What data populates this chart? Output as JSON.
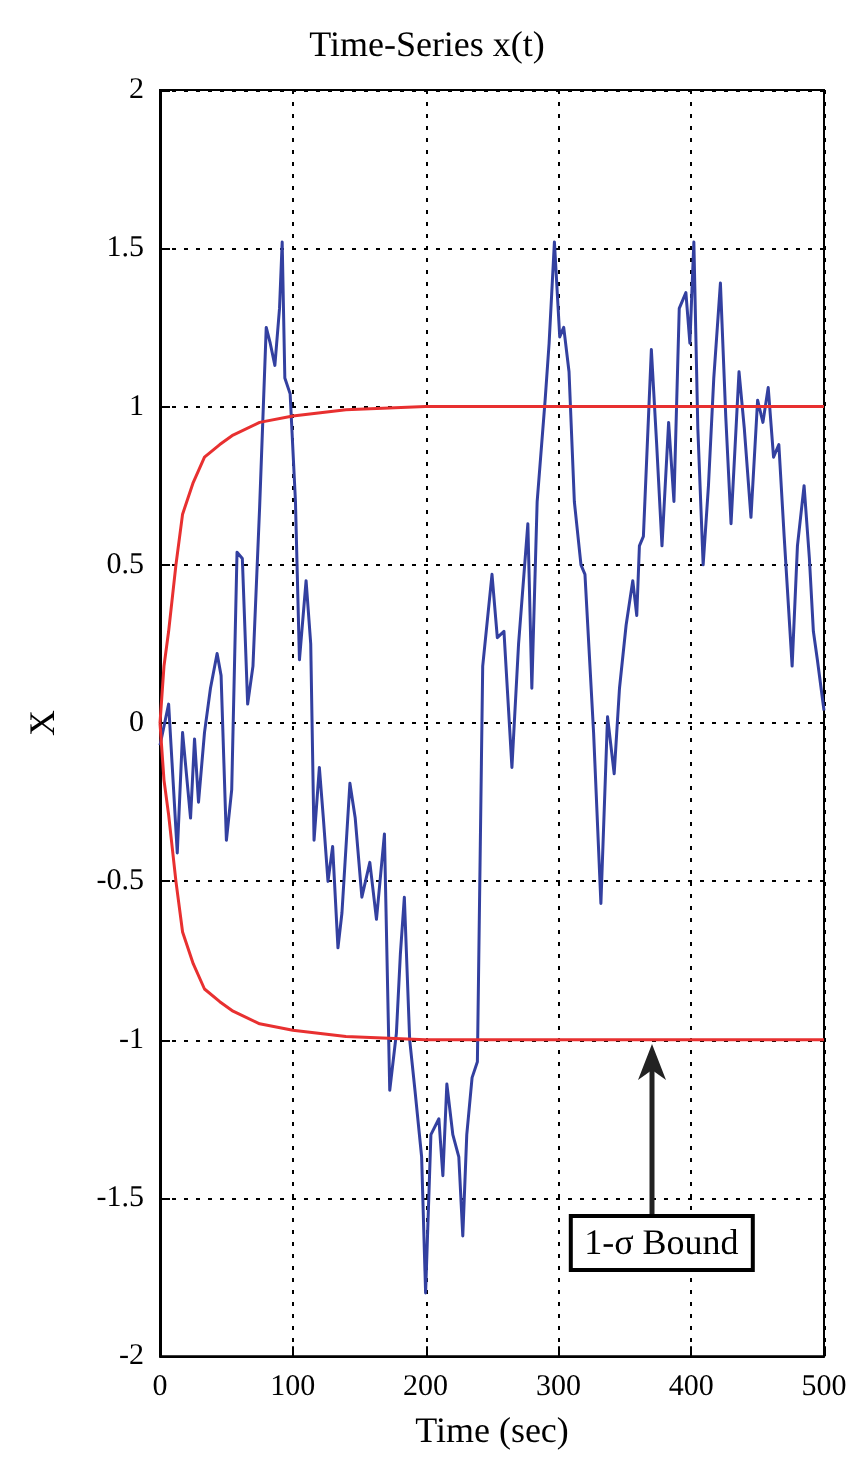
{
  "chart_data": {
    "type": "line",
    "title": "Time-Series x(t)",
    "xlabel": "Time (sec)",
    "ylabel": "X",
    "xlim": [
      0,
      500
    ],
    "xticks": [
      0,
      100,
      200,
      300,
      400,
      500
    ],
    "ylim": [
      -2,
      2
    ],
    "yticks": [
      -2,
      -1.5,
      -1,
      -0.5,
      0,
      0.5,
      1,
      1.5,
      2
    ],
    "grid": true,
    "marker": "none",
    "line_style": "solid",
    "annotations": [
      "1-σ Bound"
    ],
    "series": [
      {
        "color": "#3340a0",
        "x": [
          0,
          6.5,
          13,
          17,
          23,
          26,
          29,
          33.5,
          38,
          43,
          46,
          50,
          54,
          58,
          62,
          66,
          70,
          75,
          80,
          83,
          86.5,
          90,
          92,
          94,
          98,
          102,
          105,
          110,
          113.5,
          116,
          120,
          123,
          126.5,
          130,
          134,
          137,
          143,
          147,
          152,
          158,
          163,
          169,
          173,
          178,
          181,
          184,
          188,
          192,
          197,
          200,
          204,
          210,
          213,
          216,
          220.5,
          225,
          228,
          231,
          235,
          239,
          243,
          250,
          254,
          259,
          265,
          270,
          277,
          280,
          284,
          290,
          293,
          297,
          301,
          304,
          308,
          312,
          317,
          320,
          326.5,
          332,
          337,
          342,
          346,
          351,
          356,
          359,
          361,
          364,
          370,
          374,
          378,
          383,
          387,
          391,
          396,
          399,
          402,
          405,
          409,
          413,
          417,
          422,
          426,
          430,
          436,
          440,
          445,
          450,
          454,
          458,
          462,
          466,
          470,
          476,
          480,
          485,
          489,
          492,
          495,
          500
        ],
        "values": [
          -0.07,
          0.06,
          -0.41,
          -0.03,
          -0.3,
          -0.05,
          -0.25,
          -0.03,
          0.11,
          0.22,
          0.15,
          -0.37,
          -0.21,
          0.54,
          0.52,
          0.06,
          0.18,
          0.68,
          1.25,
          1.2,
          1.13,
          1.31,
          1.52,
          1.09,
          1.04,
          0.7,
          0.2,
          0.45,
          0.25,
          -0.37,
          -0.14,
          -0.3,
          -0.5,
          -0.39,
          -0.71,
          -0.6,
          -0.19,
          -0.3,
          -0.55,
          -0.44,
          -0.62,
          -0.35,
          -1.16,
          -0.98,
          -0.73,
          -0.55,
          -1.0,
          -1.16,
          -1.37,
          -1.8,
          -1.3,
          -1.25,
          -1.43,
          -1.14,
          -1.3,
          -1.37,
          -1.62,
          -1.3,
          -1.12,
          -1.07,
          0.18,
          0.47,
          0.27,
          0.29,
          -0.14,
          0.25,
          0.63,
          0.11,
          0.7,
          1.02,
          1.2,
          1.52,
          1.22,
          1.25,
          1.11,
          0.7,
          0.5,
          0.47,
          -0.03,
          -0.57,
          0.02,
          -0.16,
          0.11,
          0.31,
          0.45,
          0.34,
          0.56,
          0.59,
          1.18,
          0.88,
          0.56,
          0.95,
          0.7,
          1.31,
          1.36,
          1.2,
          1.52,
          0.93,
          0.5,
          0.75,
          1.09,
          1.39,
          0.97,
          0.63,
          1.11,
          0.93,
          0.65,
          1.02,
          0.95,
          1.06,
          0.84,
          0.88,
          0.59,
          0.18,
          0.56,
          0.75,
          0.52,
          0.29,
          0.2,
          0.04
        ]
      },
      {
        "color": "#e83030",
        "x": [
          0,
          3,
          6.5,
          12,
          17,
          25,
          33.5,
          45,
          55,
          75,
          100,
          140,
          200,
          300,
          500,
          null,
          0,
          3,
          6.5,
          12,
          17,
          25,
          33.5,
          45,
          55,
          75,
          100,
          140,
          200,
          300,
          500
        ],
        "values": [
          0,
          0.18,
          0.29,
          0.5,
          0.66,
          0.76,
          0.84,
          0.88,
          0.91,
          0.95,
          0.97,
          0.99,
          1,
          1,
          1,
          null,
          0,
          -0.18,
          -0.29,
          -0.5,
          -0.66,
          -0.76,
          -0.84,
          -0.88,
          -0.91,
          -0.95,
          -0.97,
          -0.99,
          -1,
          -1,
          -1
        ]
      }
    ]
  }
}
